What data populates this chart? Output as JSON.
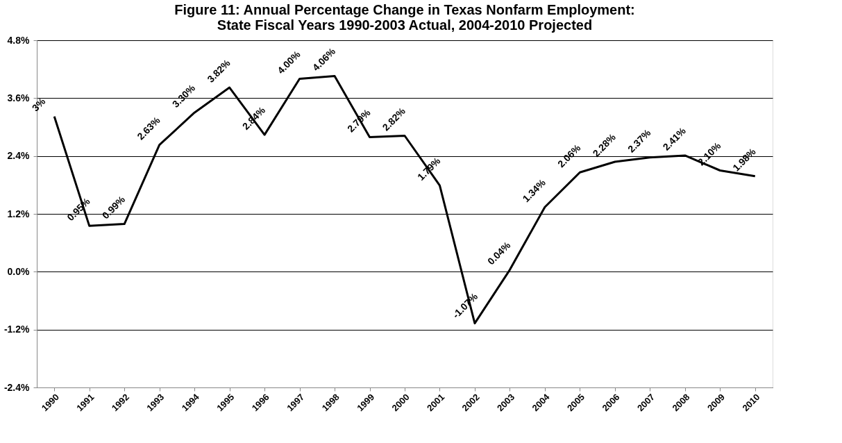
{
  "chart_data": {
    "type": "line",
    "title": [
      "Figure 11:  Annual Percentage Change in Texas Nonfarm Employment:",
      "State Fiscal Years 1990-2003 Actual, 2004-2010 Projected"
    ],
    "categories": [
      "1990",
      "1991",
      "1992",
      "1993",
      "1994",
      "1995",
      "1996",
      "1997",
      "1998",
      "1999",
      "2000",
      "2001",
      "2002",
      "2003",
      "2004",
      "2005",
      "2006",
      "2007",
      "2008",
      "2009",
      "2010"
    ],
    "values": [
      3.22,
      0.95,
      0.99,
      2.63,
      3.3,
      3.82,
      2.84,
      4.0,
      4.06,
      2.79,
      2.82,
      1.79,
      -1.07,
      0.04,
      1.34,
      2.06,
      2.28,
      2.37,
      2.41,
      2.1,
      1.98
    ],
    "value_labels": [
      "3%",
      "0.95%",
      "0.99%",
      "2.63%",
      "3.30%",
      "3.82%",
      "2.84%",
      "4.00%",
      "4.06%",
      "2.79%",
      "2.82%",
      "1.79%",
      "-1.07%",
      "0.04%",
      "1.34%",
      "2.06%",
      "2.28%",
      "2.37%",
      "2.41%",
      "2.10%",
      "1.98%"
    ],
    "color": "#000000",
    "ylim": [
      -2.4,
      4.8
    ],
    "yticks": [
      {
        "value": -2.4,
        "label": "-2.4%"
      },
      {
        "value": -1.2,
        "label": "-1.2%"
      },
      {
        "value": 0,
        "label": "0.0%"
      },
      {
        "value": 1.2,
        "label": "1.2%"
      },
      {
        "value": 2.4,
        "label": "2.4%"
      },
      {
        "value": 3.6,
        "label": "3.6%"
      },
      {
        "value": 4.8,
        "label": "4.8%"
      }
    ],
    "grid": "y",
    "marker": "none",
    "line_style": "solid"
  }
}
